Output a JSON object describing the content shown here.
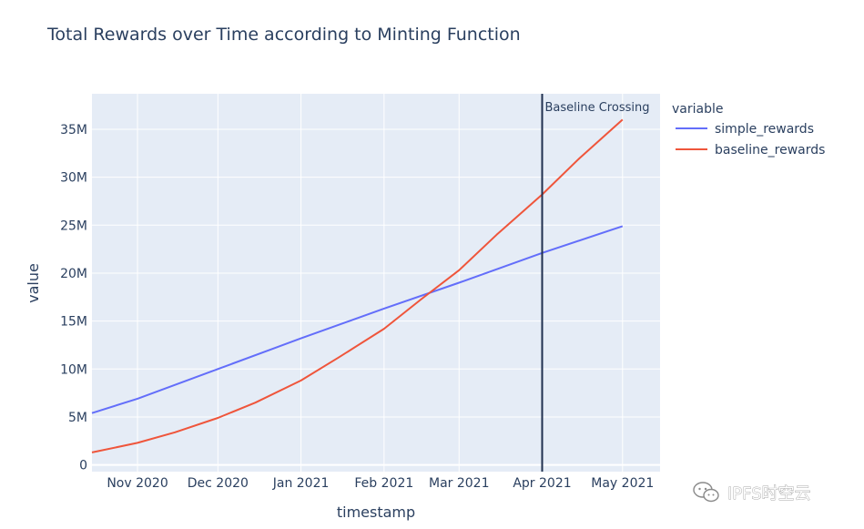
{
  "chart_data": {
    "type": "line",
    "title": "Total Rewards over Time according to Minting Function",
    "xlabel": "timestamp",
    "ylabel": "value",
    "x_tick_labels": [
      "Nov 2020",
      "Dec 2020",
      "Jan 2021",
      "Feb 2021",
      "Mar 2021",
      "Apr 2021",
      "May 2021"
    ],
    "x_ticks": [
      "2020-11-01",
      "2020-12-01",
      "2021-01-01",
      "2021-02-01",
      "2021-03-01",
      "2021-04-01",
      "2021-05-01"
    ],
    "xlim": [
      "2020-10-15",
      "2021-05-15"
    ],
    "y_tick_labels": [
      "0",
      "5M",
      "10M",
      "15M",
      "20M",
      "25M",
      "30M",
      "35M"
    ],
    "y_ticks": [
      0,
      5000000,
      10000000,
      15000000,
      20000000,
      25000000,
      30000000,
      35000000
    ],
    "ylim": [
      -700000,
      38700000
    ],
    "grid": true,
    "legend_title": "variable",
    "legend_position": "right",
    "series": [
      {
        "name": "simple_rewards",
        "color": "#636efa",
        "x": [
          "2020-10-15",
          "2020-11-01",
          "2020-12-01",
          "2021-01-01",
          "2021-02-01",
          "2021-03-01",
          "2021-04-01",
          "2021-05-01"
        ],
        "y": [
          5400000,
          6900000,
          10000000,
          13200000,
          16300000,
          19000000,
          22100000,
          24900000
        ]
      },
      {
        "name": "baseline_rewards",
        "color": "#ef553b",
        "x": [
          "2020-10-15",
          "2020-11-01",
          "2020-11-15",
          "2020-12-01",
          "2020-12-15",
          "2021-01-01",
          "2021-01-15",
          "2021-02-01",
          "2021-02-15",
          "2021-03-01",
          "2021-03-15",
          "2021-04-01",
          "2021-04-15",
          "2021-05-01"
        ],
        "y": [
          1300000,
          2300000,
          3400000,
          4900000,
          6500000,
          8800000,
          11200000,
          14200000,
          17300000,
          20300000,
          24000000,
          28200000,
          32000000,
          36000000
        ]
      }
    ],
    "annotations": [
      {
        "type": "vline",
        "x": "2021-04-01",
        "label": "Baseline Crossing",
        "color": "#1f2f4f"
      }
    ]
  },
  "watermark": {
    "text": "IPFS时空云",
    "icon": "wechat-icon"
  }
}
